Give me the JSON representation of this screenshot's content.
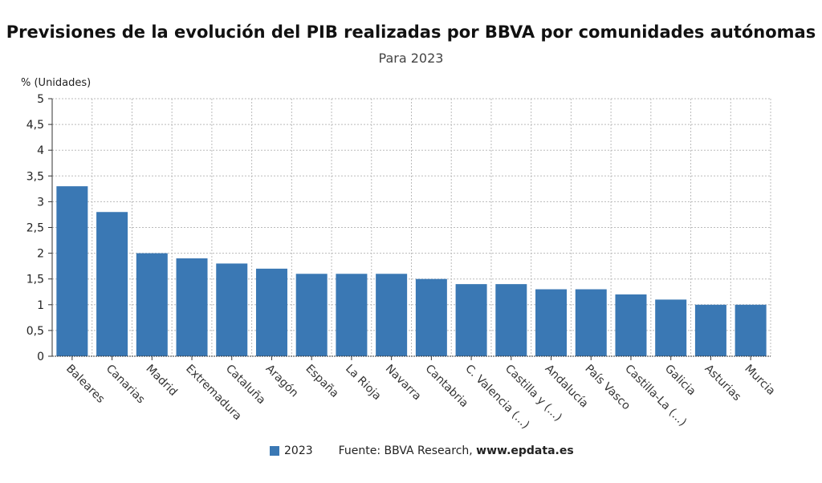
{
  "chart_data": {
    "type": "bar",
    "title": "Previsiones de la evolución del PIB realizadas por BBVA por comunidades autónomas",
    "subtitle": "Para 2023",
    "ylabel": "% (Unidades)",
    "xlabel": "",
    "ylim": [
      0,
      5
    ],
    "yticks": [
      "0",
      "0,5",
      "1",
      "1,5",
      "2",
      "2,5",
      "3",
      "3,5",
      "4",
      "4,5",
      "5"
    ],
    "grid": true,
    "legend_position": "bottom",
    "categories": [
      "Baleares",
      "Canarias",
      "Madrid",
      "Extremadura",
      "Cataluña",
      "Aragón",
      "España",
      "La Rioja",
      "Navarra",
      "Cantabria",
      "C. Valencia (...)",
      "Castilla y (...)",
      "Andalucía",
      "País Vasco",
      "Castilla-La (...)",
      "Galicia",
      "Asturias",
      "Murcia"
    ],
    "series": [
      {
        "name": "2023",
        "color": "#3a78b4",
        "values": [
          3.3,
          2.8,
          2.0,
          1.9,
          1.8,
          1.7,
          1.6,
          1.6,
          1.6,
          1.5,
          1.4,
          1.4,
          1.3,
          1.3,
          1.2,
          1.1,
          1.0,
          1.0
        ]
      }
    ]
  },
  "source": {
    "prefix": "Fuente: BBVA Research, ",
    "site": "www.epdata.es"
  }
}
